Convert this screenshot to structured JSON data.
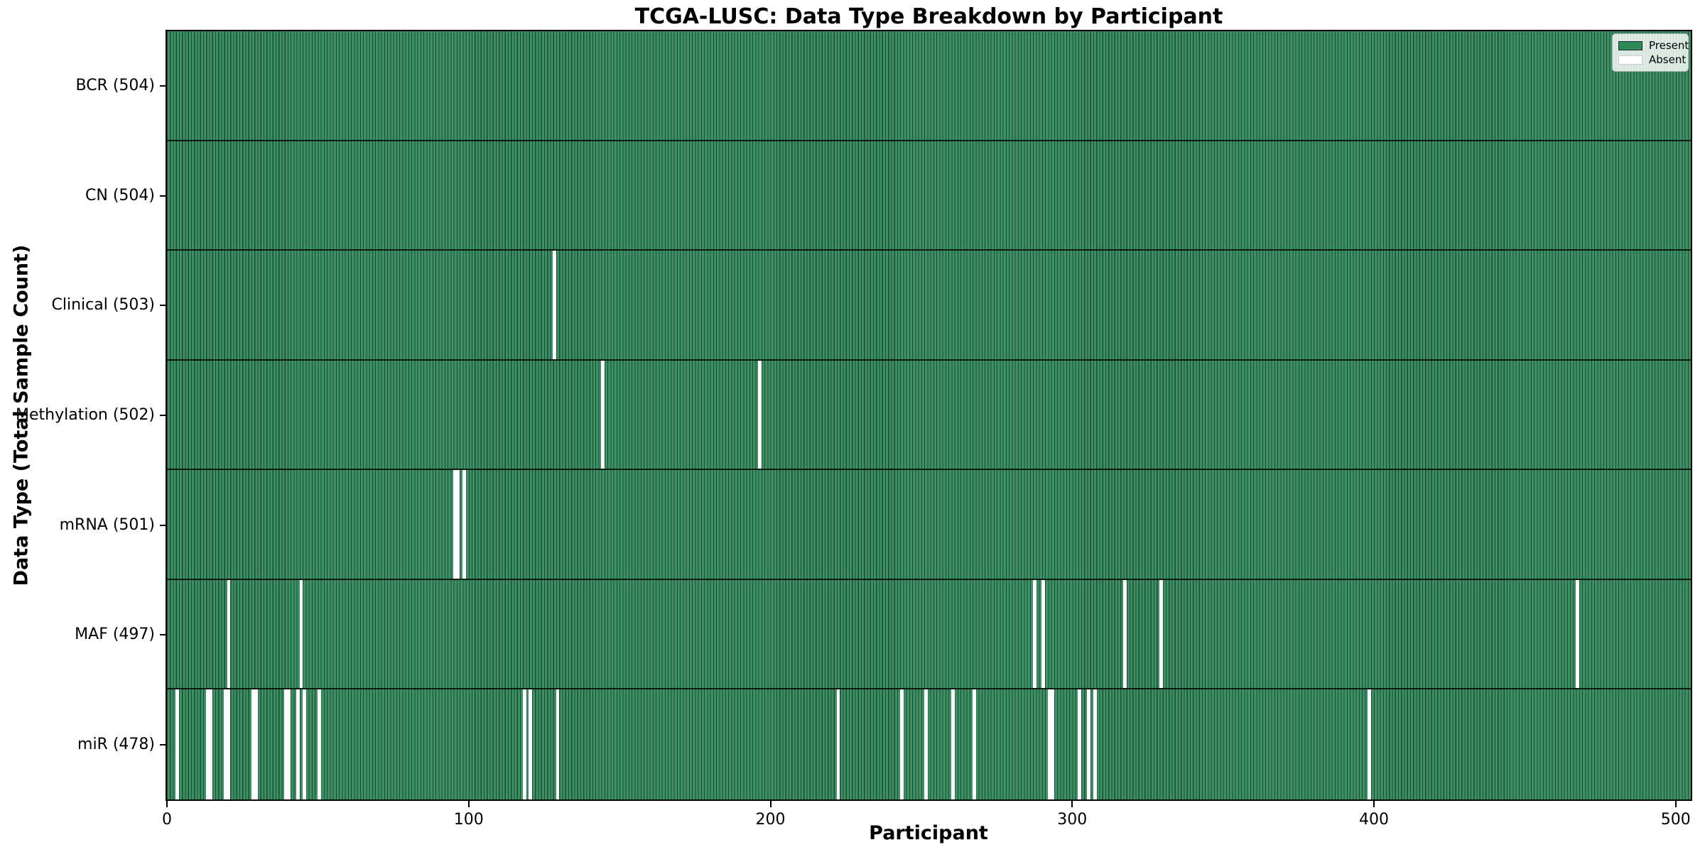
{
  "chart_data": {
    "type": "heatmap",
    "title": "TCGA-LUSC: Data Type Breakdown by Participant",
    "xlabel": "Participant",
    "ylabel": "Data Type (Total Sample Count)",
    "x_ticks": [
      0,
      100,
      200,
      300,
      400,
      500
    ],
    "x_max": 505,
    "n_participants": 504,
    "legend": [
      {
        "label": "Present",
        "color": "#2e8b57"
      },
      {
        "label": "Absent",
        "color": "#ffffff"
      }
    ],
    "colors": {
      "present": "#3d9265",
      "edge": "rgba(0,0,0,0.5)",
      "absent": "#ffffff",
      "row_separator": "rgba(0,0,0,0.8)"
    },
    "rows": [
      {
        "key": "bcr",
        "label": "BCR (504)",
        "total": 504,
        "absent": []
      },
      {
        "key": "cn",
        "label": "CN (504)",
        "total": 504,
        "absent": []
      },
      {
        "key": "clinical",
        "label": "Clinical (503)",
        "total": 503,
        "absent": [
          128
        ]
      },
      {
        "key": "methylation",
        "label": "Methylation (502)",
        "total": 502,
        "absent": [
          144,
          196
        ]
      },
      {
        "key": "mrna",
        "label": "mRNA (501)",
        "total": 501,
        "absent": [
          95,
          96,
          98
        ]
      },
      {
        "key": "maf",
        "label": "MAF (497)",
        "total": 497,
        "absent": [
          20,
          44,
          287,
          290,
          317,
          329,
          467
        ]
      },
      {
        "key": "mir",
        "label": "miR (478)",
        "total": 478,
        "absent": [
          3,
          13,
          14,
          19,
          20,
          28,
          29,
          39,
          40,
          43,
          45,
          50,
          118,
          120,
          129,
          222,
          243,
          251,
          260,
          267,
          292,
          293,
          302,
          305,
          307,
          398
        ]
      }
    ]
  }
}
